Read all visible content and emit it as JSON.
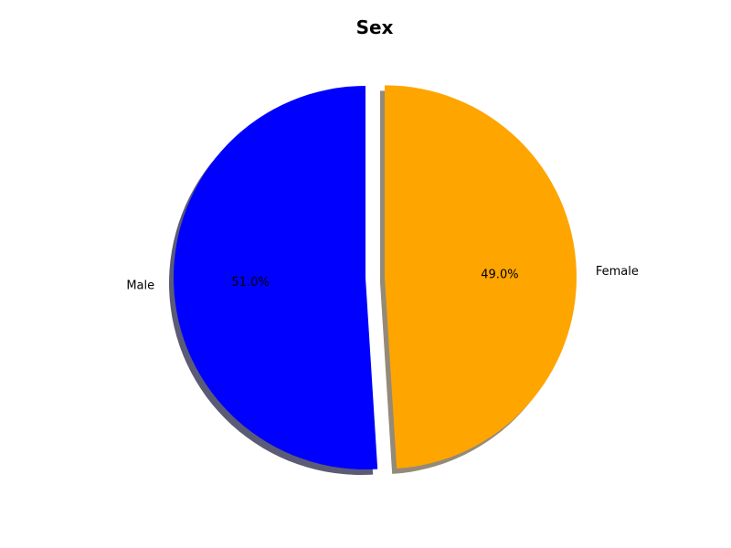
{
  "chart_data": {
    "type": "pie",
    "title": "Sex",
    "slices": [
      {
        "label": "Male",
        "value": 51.0,
        "pct_label": "51.0%",
        "color": "#0000ff",
        "explode": 0
      },
      {
        "label": "Female",
        "value": 49.0,
        "pct_label": "49.0%",
        "color": "#ffa500",
        "explode": 0.1
      }
    ],
    "start_angle": 90,
    "direction": "counterclockwise",
    "shadow": true,
    "legend": "none"
  }
}
